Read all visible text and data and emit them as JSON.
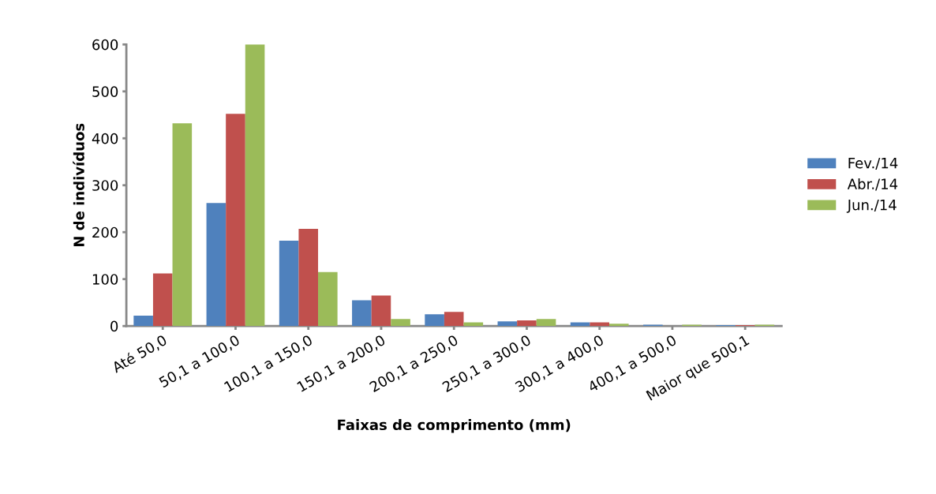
{
  "chart_data": {
    "type": "bar",
    "xlabel": "Faixas de comprimento (mm)",
    "ylabel": "N de indivíduos",
    "categories": [
      "Até 50,0",
      "50,1 a 100,0",
      "100,1 a 150,0",
      "150,1 a 200,0",
      "200,1 a 250,0",
      "250,1 a 300,0",
      "300,1 a 400,0",
      "400,1 a 500,0",
      "Maior que 500,1"
    ],
    "series": [
      {
        "name": "Fev./14",
        "color": "#4f81bd",
        "values": [
          22,
          262,
          182,
          55,
          25,
          10,
          8,
          3,
          2
        ]
      },
      {
        "name": "Abr./14",
        "color": "#c0504d",
        "values": [
          112,
          452,
          207,
          65,
          30,
          12,
          8,
          0,
          2
        ]
      },
      {
        "name": "Jun./14",
        "color": "#9bbb59",
        "values": [
          432,
          600,
          115,
          15,
          8,
          15,
          5,
          3,
          3
        ]
      }
    ],
    "ylim": [
      0,
      600
    ],
    "yticks": [
      0,
      100,
      200,
      300,
      400,
      500,
      600
    ],
    "grid": false,
    "legend": "right"
  }
}
